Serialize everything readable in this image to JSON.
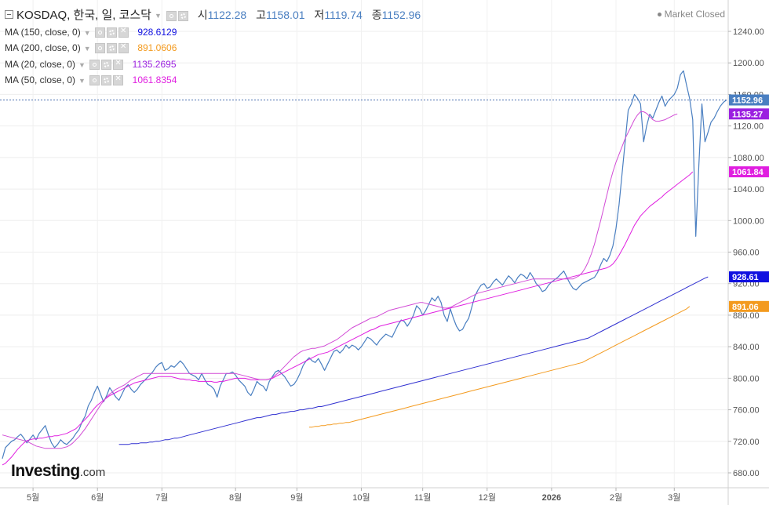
{
  "header": {
    "symbol": "KOSDAQ, 한국, 일, 코스닥",
    "open_label": "시",
    "open_value": "1122.28",
    "high_label": "고",
    "high_value": "1158.01",
    "low_label": "저",
    "low_value": "1119.74",
    "close_label": "종",
    "close_value": "1152.96"
  },
  "status": "Market Closed",
  "logo": {
    "main": "Investing",
    "suffix": ".com"
  },
  "indicators": [
    {
      "label": "MA (150, close, 0)",
      "value": "928.6129",
      "color": "#1010e0"
    },
    {
      "label": "MA (200, close, 0)",
      "value": "891.0606",
      "color": "#f39a1e"
    },
    {
      "label": "MA (20, close, 0)",
      "value": "1135.2695",
      "color": "#9b1fe0"
    },
    {
      "label": "MA (50, close, 0)",
      "value": "1061.8354",
      "color": "#e01fe0"
    }
  ],
  "chart_data": {
    "type": "line",
    "title": "KOSDAQ, 한국, 일, 코스닥",
    "xlabel": "",
    "ylabel": "",
    "ylim": [
      668,
      1262
    ],
    "y_ticks": [
      680,
      720,
      760,
      800,
      840,
      880,
      920,
      960,
      1000,
      1040,
      1080,
      1120,
      1160,
      1200,
      1240
    ],
    "x_ticks": [
      "5월",
      "6월",
      "7월",
      "8월",
      "9월",
      "10월",
      "11월",
      "12월",
      "2026",
      "2월",
      "3월"
    ],
    "x_tick_index": [
      10,
      31,
      52,
      76,
      96,
      117,
      137,
      158,
      179,
      200,
      219
    ],
    "grid": true,
    "last_price_label": "1152.96",
    "current_price": 1152.96,
    "value_tags": [
      {
        "text": "1152.96",
        "value": 1152.96,
        "color": "#4a7fc1"
      },
      {
        "text": "1135.27",
        "value": 1135.27,
        "color": "#9b1fe0"
      },
      {
        "text": "1061.84",
        "value": 1061.84,
        "color": "#e01fe0"
      },
      {
        "text": "928.61",
        "value": 928.61,
        "color": "#1010e0"
      },
      {
        "text": "891.06",
        "value": 891.06,
        "color": "#f39a1e"
      }
    ],
    "series": [
      {
        "color": "#4a7fc1",
        "start": 0,
        "values": [
          698,
          712,
          716,
          720,
          722,
          726,
          729,
          724,
          718,
          723,
          728,
          722,
          730,
          735,
          740,
          728,
          718,
          712,
          716,
          722,
          718,
          716,
          720,
          724,
          730,
          735,
          745,
          752,
          765,
          772,
          782,
          790,
          780,
          770,
          778,
          788,
          782,
          776,
          772,
          780,
          788,
          792,
          786,
          782,
          786,
          792,
          796,
          800,
          804,
          808,
          814,
          818,
          820,
          810,
          812,
          816,
          814,
          818,
          822,
          818,
          812,
          806,
          804,
          802,
          798,
          806,
          798,
          792,
          790,
          786,
          776,
          790,
          798,
          806,
          806,
          808,
          804,
          798,
          794,
          790,
          782,
          778,
          786,
          796,
          792,
          790,
          784,
          796,
          802,
          808,
          810,
          806,
          802,
          796,
          790,
          792,
          798,
          806,
          816,
          822,
          826,
          822,
          820,
          825,
          818,
          810,
          818,
          826,
          834,
          836,
          832,
          836,
          842,
          838,
          842,
          840,
          836,
          840,
          846,
          852,
          850,
          846,
          842,
          848,
          852,
          856,
          854,
          852,
          860,
          868,
          874,
          872,
          866,
          872,
          880,
          892,
          888,
          880,
          886,
          894,
          902,
          898,
          904,
          896,
          880,
          872,
          888,
          876,
          866,
          860,
          862,
          870,
          876,
          890,
          904,
          912,
          918,
          920,
          914,
          916,
          922,
          926,
          922,
          918,
          924,
          930,
          926,
          921,
          928,
          932,
          930,
          926,
          934,
          928,
          920,
          916,
          910,
          912,
          918,
          922,
          925,
          928,
          932,
          936,
          928,
          920,
          914,
          912,
          916,
          920,
          922,
          924,
          926,
          928,
          934,
          944,
          952,
          948,
          956,
          968,
          990,
          1020,
          1060,
          1100,
          1140,
          1148,
          1160,
          1155,
          1148,
          1100,
          1120,
          1135,
          1130,
          1140,
          1150,
          1158,
          1145,
          1152,
          1156,
          1160,
          1168,
          1185,
          1190,
          1172,
          1155,
          1128,
          980,
          1070,
          1148,
          1100,
          1112,
          1125,
          1130,
          1138,
          1145,
          1150,
          1152.96
        ]
      },
      {
        "color": "#e01fe0",
        "start": 0,
        "values": [
          690,
          692,
          696,
          700,
          705,
          710,
          714,
          718,
          721,
          722,
          723,
          723,
          724,
          724,
          725,
          726,
          726,
          727,
          727,
          728,
          729,
          730,
          732,
          734,
          736,
          740,
          744,
          748,
          752,
          757,
          762,
          766,
          769,
          772,
          775,
          778,
          780,
          782,
          784,
          786,
          788,
          790,
          792,
          794,
          795,
          796,
          797,
          798,
          799,
          800,
          801,
          802,
          802,
          802,
          802,
          802,
          801,
          800,
          799,
          799,
          798,
          798,
          797,
          797,
          796,
          796,
          796,
          796,
          796,
          795,
          795,
          796,
          796,
          797,
          798,
          799,
          800,
          800,
          800,
          800,
          799,
          798,
          798,
          798,
          798,
          798,
          798,
          799,
          800,
          802,
          804,
          806,
          808,
          810,
          812,
          814,
          816,
          818,
          820,
          822,
          824,
          826,
          828,
          830,
          831,
          832,
          833,
          835,
          837,
          839,
          841,
          843,
          845,
          847,
          849,
          851,
          853,
          855,
          857,
          859,
          861,
          862,
          864,
          866,
          867,
          868,
          869,
          870,
          871,
          872,
          873,
          874,
          875,
          876,
          877,
          878,
          879,
          880,
          881,
          882,
          883,
          884,
          885,
          886,
          887,
          888,
          889,
          890,
          891,
          892,
          893,
          894,
          895,
          896,
          897,
          898,
          899,
          900,
          901,
          902,
          903,
          904,
          905,
          906,
          907,
          908,
          909,
          910,
          911,
          912,
          913,
          914,
          915,
          916,
          917,
          918,
          919,
          920,
          921,
          922,
          923,
          924,
          925,
          926,
          927,
          928,
          929,
          930,
          931,
          932,
          933,
          934,
          935,
          936,
          937,
          938,
          939,
          940,
          942,
          945,
          950,
          956,
          963,
          970,
          978,
          986,
          994,
          1000,
          1006,
          1010,
          1014,
          1018,
          1021,
          1024,
          1027,
          1030,
          1034,
          1037,
          1040,
          1043,
          1046,
          1049,
          1052,
          1055,
          1058,
          1061.84
        ]
      },
      {
        "color": "#d24cd6",
        "start": 0,
        "values": [
          728,
          727,
          726,
          725,
          724,
          723,
          722,
          721,
          720,
          718,
          716,
          714,
          713,
          712,
          711,
          711,
          711,
          711,
          711,
          711,
          712,
          713,
          715,
          718,
          722,
          726,
          731,
          736,
          742,
          748,
          754,
          760,
          766,
          771,
          776,
          780,
          783,
          786,
          788,
          790,
          792,
          795,
          798,
          800,
          802,
          804,
          806,
          806,
          806,
          806,
          806,
          806,
          806,
          806,
          806,
          806,
          806,
          806,
          806,
          806,
          806,
          806,
          806,
          806,
          806,
          806,
          806,
          806,
          806,
          806,
          806,
          806,
          806,
          806,
          806,
          806,
          806,
          805,
          804,
          803,
          802,
          801,
          800,
          799,
          798,
          798,
          798,
          799,
          801,
          804,
          807,
          811,
          815,
          819,
          823,
          827,
          830,
          833,
          835,
          836,
          837,
          838,
          838,
          839,
          840,
          841,
          843,
          845,
          847,
          849,
          852,
          855,
          858,
          861,
          864,
          866,
          868,
          870,
          872,
          874,
          876,
          877,
          878,
          880,
          882,
          884,
          886,
          887,
          888,
          889,
          890,
          891,
          892,
          893,
          894,
          895,
          896,
          896,
          895,
          894,
          893,
          892,
          891,
          890,
          889,
          889,
          890,
          892,
          894,
          896,
          898,
          900,
          902,
          904,
          906,
          908,
          909,
          910,
          911,
          912,
          913,
          914,
          915,
          916,
          917,
          918,
          919,
          920,
          921,
          922,
          923,
          924,
          925,
          926,
          926,
          926,
          926,
          926,
          926,
          926,
          926,
          926,
          926,
          926,
          926,
          926,
          926,
          928,
          930,
          934,
          940,
          948,
          958,
          970,
          985,
          1000,
          1016,
          1032,
          1048,
          1062,
          1074,
          1084,
          1094,
          1104,
          1112,
          1120,
          1128,
          1134,
          1138,
          1138,
          1136,
          1132,
          1128,
          1126,
          1126,
          1127,
          1128,
          1130,
          1132,
          1134,
          1135.27
        ]
      },
      {
        "color": "#3030d0",
        "start": 38,
        "values": [
          716,
          716,
          716,
          716,
          717,
          717,
          717,
          718,
          718,
          718,
          719,
          719,
          720,
          720,
          721,
          722,
          722,
          723,
          724,
          724,
          725,
          726,
          727,
          728,
          729,
          730,
          731,
          732,
          733,
          734,
          735,
          736,
          737,
          738,
          739,
          740,
          741,
          742,
          743,
          744,
          745,
          746,
          747,
          748,
          749,
          750,
          750,
          751,
          752,
          753,
          754,
          754,
          755,
          756,
          756,
          757,
          758,
          758,
          759,
          760,
          760,
          761,
          762,
          762,
          763,
          764,
          764,
          765,
          766,
          767,
          768,
          769,
          770,
          771,
          772,
          773,
          774,
          775,
          776,
          777,
          778,
          779,
          780,
          781,
          782,
          783,
          784,
          785,
          786,
          787,
          788,
          789,
          790,
          791,
          792,
          793,
          794,
          795,
          796,
          797,
          798,
          799,
          800,
          801,
          802,
          803,
          804,
          805,
          806,
          807,
          808,
          809,
          810,
          811,
          812,
          813,
          814,
          815,
          816,
          817,
          818,
          819,
          820,
          821,
          822,
          823,
          824,
          825,
          826,
          827,
          828,
          829,
          830,
          831,
          832,
          833,
          834,
          835,
          836,
          837,
          838,
          839,
          840,
          841,
          842,
          843,
          844,
          845,
          846,
          847,
          848,
          849,
          850,
          851,
          853,
          855,
          857,
          859,
          861,
          863,
          865,
          867,
          869,
          871,
          873,
          875,
          877,
          879,
          881,
          883,
          885,
          887,
          889,
          891,
          893,
          895,
          897,
          899,
          901,
          903,
          905,
          907,
          909,
          911,
          913,
          915,
          917,
          919,
          921,
          923,
          925,
          927,
          928.61
        ]
      },
      {
        "color": "#f39a1e",
        "start": 100,
        "values": [
          738,
          738,
          739,
          739,
          740,
          740,
          741,
          741,
          742,
          742,
          743,
          743,
          744,
          744,
          745,
          746,
          747,
          748,
          749,
          750,
          751,
          752,
          753,
          754,
          755,
          756,
          757,
          758,
          759,
          760,
          761,
          762,
          763,
          764,
          765,
          766,
          767,
          768,
          769,
          770,
          771,
          772,
          773,
          774,
          775,
          776,
          777,
          778,
          779,
          780,
          781,
          782,
          783,
          784,
          785,
          786,
          787,
          788,
          789,
          790,
          791,
          792,
          793,
          794,
          795,
          796,
          797,
          798,
          799,
          800,
          801,
          802,
          803,
          804,
          805,
          806,
          807,
          808,
          809,
          810,
          811,
          812,
          813,
          814,
          815,
          816,
          817,
          818,
          819,
          820,
          822,
          824,
          826,
          828,
          830,
          832,
          834,
          836,
          838,
          840,
          842,
          844,
          846,
          848,
          850,
          852,
          854,
          856,
          858,
          860,
          862,
          864,
          866,
          868,
          870,
          872,
          874,
          876,
          878,
          880,
          882,
          884,
          886,
          888,
          891.06
        ]
      }
    ]
  }
}
